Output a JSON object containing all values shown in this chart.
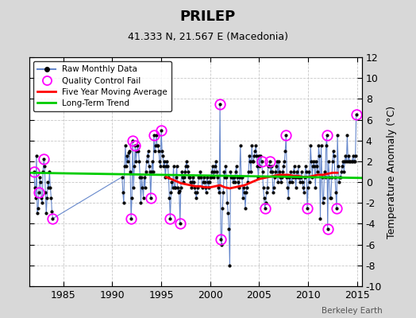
{
  "title": "PRILEP",
  "subtitle": "41.333 N, 21.567 E (Macedonia)",
  "ylabel": "Temperature Anomaly (°C)",
  "attribution": "Berkeley Earth",
  "xlim": [
    1981.5,
    2015.5
  ],
  "ylim": [
    -10,
    12
  ],
  "yticks": [
    -10,
    -8,
    -6,
    -4,
    -2,
    0,
    2,
    4,
    6,
    8,
    10,
    12
  ],
  "xticks": [
    1985,
    1990,
    1995,
    2000,
    2005,
    2010,
    2015
  ],
  "bg_color": "#d8d8d8",
  "plot_bg_color": "#ffffff",
  "grid_color": "#c8c8c8",
  "raw_line_color": "#6688cc",
  "raw_dot_color": "#000000",
  "qc_color": "#ff00ff",
  "ma_color": "#ff0000",
  "trend_color": "#00cc00",
  "raw_data": [
    [
      1982.0,
      1.0
    ],
    [
      1982.083,
      -0.5
    ],
    [
      1982.167,
      -1.5
    ],
    [
      1982.25,
      2.5
    ],
    [
      1982.333,
      -3.0
    ],
    [
      1982.417,
      -2.5
    ],
    [
      1982.5,
      -1.0
    ],
    [
      1982.583,
      0.5
    ],
    [
      1982.667,
      0.0
    ],
    [
      1982.75,
      -1.5
    ],
    [
      1982.833,
      -2.0
    ],
    [
      1982.917,
      1.0
    ],
    [
      1983.0,
      2.2
    ],
    [
      1983.083,
      1.5
    ],
    [
      1983.167,
      -1.0
    ],
    [
      1983.25,
      -3.0
    ],
    [
      1983.333,
      -1.5
    ],
    [
      1983.417,
      0.0
    ],
    [
      1983.5,
      -0.5
    ],
    [
      1983.583,
      1.0
    ],
    [
      1983.667,
      -0.5
    ],
    [
      1983.75,
      -1.5
    ],
    [
      1983.833,
      -2.8
    ],
    [
      1983.917,
      -3.5
    ],
    [
      1991.0,
      0.5
    ],
    [
      1991.083,
      -1.0
    ],
    [
      1991.167,
      -2.0
    ],
    [
      1991.25,
      1.5
    ],
    [
      1991.333,
      3.5
    ],
    [
      1991.417,
      1.5
    ],
    [
      1991.5,
      2.5
    ],
    [
      1991.583,
      2.0
    ],
    [
      1991.667,
      2.8
    ],
    [
      1991.75,
      3.0
    ],
    [
      1991.833,
      1.0
    ],
    [
      1991.917,
      -3.5
    ],
    [
      1992.0,
      -1.5
    ],
    [
      1992.083,
      4.0
    ],
    [
      1992.167,
      -0.5
    ],
    [
      1992.25,
      1.5
    ],
    [
      1992.333,
      3.5
    ],
    [
      1992.417,
      2.0
    ],
    [
      1992.5,
      3.0
    ],
    [
      1992.583,
      3.5
    ],
    [
      1992.667,
      3.0
    ],
    [
      1992.75,
      2.0
    ],
    [
      1992.833,
      0.5
    ],
    [
      1992.917,
      -2.0
    ],
    [
      1993.0,
      0.5
    ],
    [
      1993.083,
      -0.5
    ],
    [
      1993.167,
      -1.5
    ],
    [
      1993.25,
      0.5
    ],
    [
      1993.333,
      -0.5
    ],
    [
      1993.417,
      1.0
    ],
    [
      1993.5,
      2.0
    ],
    [
      1993.583,
      2.5
    ],
    [
      1993.667,
      3.0
    ],
    [
      1993.75,
      1.5
    ],
    [
      1993.833,
      1.0
    ],
    [
      1993.917,
      -1.5
    ],
    [
      1994.0,
      1.0
    ],
    [
      1994.083,
      2.0
    ],
    [
      1994.167,
      1.0
    ],
    [
      1994.25,
      4.5
    ],
    [
      1994.333,
      3.0
    ],
    [
      1994.417,
      3.5
    ],
    [
      1994.5,
      4.5
    ],
    [
      1994.583,
      3.5
    ],
    [
      1994.667,
      3.5
    ],
    [
      1994.75,
      3.0
    ],
    [
      1994.833,
      2.0
    ],
    [
      1994.917,
      1.5
    ],
    [
      1995.0,
      5.0
    ],
    [
      1995.083,
      3.0
    ],
    [
      1995.167,
      2.5
    ],
    [
      1995.25,
      1.5
    ],
    [
      1995.333,
      2.0
    ],
    [
      1995.417,
      0.5
    ],
    [
      1995.5,
      1.5
    ],
    [
      1995.583,
      2.0
    ],
    [
      1995.667,
      1.5
    ],
    [
      1995.75,
      0.5
    ],
    [
      1995.833,
      -1.5
    ],
    [
      1995.917,
      -3.5
    ],
    [
      1996.0,
      -1.0
    ],
    [
      1996.083,
      0.0
    ],
    [
      1996.167,
      -0.5
    ],
    [
      1996.25,
      1.5
    ],
    [
      1996.333,
      -0.5
    ],
    [
      1996.417,
      -0.5
    ],
    [
      1996.5,
      0.5
    ],
    [
      1996.583,
      1.5
    ],
    [
      1996.667,
      -0.5
    ],
    [
      1996.75,
      -1.0
    ],
    [
      1996.833,
      -0.8
    ],
    [
      1996.917,
      -4.0
    ],
    [
      1997.0,
      -0.5
    ],
    [
      1997.083,
      1.0
    ],
    [
      1997.167,
      0.5
    ],
    [
      1997.25,
      0.0
    ],
    [
      1997.333,
      0.5
    ],
    [
      1997.417,
      1.0
    ],
    [
      1997.5,
      1.5
    ],
    [
      1997.583,
      2.0
    ],
    [
      1997.667,
      1.5
    ],
    [
      1997.75,
      1.0
    ],
    [
      1997.833,
      0.5
    ],
    [
      1997.917,
      0.5
    ],
    [
      1998.0,
      0.0
    ],
    [
      1998.083,
      -0.5
    ],
    [
      1998.167,
      0.0
    ],
    [
      1998.25,
      0.5
    ],
    [
      1998.333,
      0.0
    ],
    [
      1998.417,
      -0.5
    ],
    [
      1998.5,
      -1.0
    ],
    [
      1998.583,
      -1.5
    ],
    [
      1998.667,
      -1.0
    ],
    [
      1998.75,
      -0.5
    ],
    [
      1998.833,
      0.5
    ],
    [
      1998.917,
      0.5
    ],
    [
      1999.0,
      1.0
    ],
    [
      1999.083,
      0.5
    ],
    [
      1999.167,
      -0.5
    ],
    [
      1999.25,
      0.0
    ],
    [
      1999.333,
      0.5
    ],
    [
      1999.417,
      0.0
    ],
    [
      1999.5,
      -0.5
    ],
    [
      1999.583,
      -1.0
    ],
    [
      1999.667,
      0.5
    ],
    [
      1999.75,
      0.0
    ],
    [
      1999.833,
      -0.5
    ],
    [
      1999.917,
      0.0
    ],
    [
      2000.0,
      0.5
    ],
    [
      2000.083,
      0.5
    ],
    [
      2000.167,
      1.0
    ],
    [
      2000.25,
      1.5
    ],
    [
      2000.333,
      0.5
    ],
    [
      2000.417,
      1.0
    ],
    [
      2000.5,
      1.5
    ],
    [
      2000.583,
      2.0
    ],
    [
      2000.667,
      1.0
    ],
    [
      2000.75,
      0.5
    ],
    [
      2000.833,
      -0.5
    ],
    [
      2000.917,
      -1.0
    ],
    [
      2001.0,
      7.5
    ],
    [
      2001.083,
      -5.5
    ],
    [
      2001.167,
      -6.0
    ],
    [
      2001.25,
      -2.5
    ],
    [
      2001.333,
      -1.0
    ],
    [
      2001.417,
      1.0
    ],
    [
      2001.5,
      0.5
    ],
    [
      2001.583,
      1.5
    ],
    [
      2001.667,
      0.5
    ],
    [
      2001.75,
      -2.0
    ],
    [
      2001.833,
      -3.0
    ],
    [
      2001.917,
      -4.5
    ],
    [
      2002.0,
      -8.0
    ],
    [
      2002.083,
      1.0
    ],
    [
      2002.167,
      0.5
    ],
    [
      2002.25,
      0.5
    ],
    [
      2002.333,
      0.0
    ],
    [
      2002.417,
      0.5
    ],
    [
      2002.5,
      0.0
    ],
    [
      2002.583,
      1.0
    ],
    [
      2002.667,
      1.5
    ],
    [
      2002.75,
      0.5
    ],
    [
      2002.833,
      0.0
    ],
    [
      2002.917,
      -0.5
    ],
    [
      2003.0,
      0.5
    ],
    [
      2003.083,
      3.5
    ],
    [
      2003.167,
      0.5
    ],
    [
      2003.25,
      0.5
    ],
    [
      2003.333,
      -1.5
    ],
    [
      2003.417,
      -0.5
    ],
    [
      2003.5,
      -1.0
    ],
    [
      2003.583,
      -2.5
    ],
    [
      2003.667,
      -1.0
    ],
    [
      2003.75,
      -0.5
    ],
    [
      2003.833,
      0.0
    ],
    [
      2003.917,
      1.0
    ],
    [
      2004.0,
      2.5
    ],
    [
      2004.083,
      2.0
    ],
    [
      2004.167,
      1.0
    ],
    [
      2004.25,
      3.5
    ],
    [
      2004.333,
      2.0
    ],
    [
      2004.417,
      2.0
    ],
    [
      2004.5,
      2.5
    ],
    [
      2004.583,
      3.0
    ],
    [
      2004.667,
      3.5
    ],
    [
      2004.75,
      2.5
    ],
    [
      2004.833,
      1.5
    ],
    [
      2004.917,
      0.5
    ],
    [
      2005.0,
      2.5
    ],
    [
      2005.083,
      1.5
    ],
    [
      2005.167,
      2.5
    ],
    [
      2005.25,
      2.0
    ],
    [
      2005.333,
      1.0
    ],
    [
      2005.417,
      -0.5
    ],
    [
      2005.5,
      -1.5
    ],
    [
      2005.583,
      -2.5
    ],
    [
      2005.667,
      -2.0
    ],
    [
      2005.75,
      -1.0
    ],
    [
      2005.833,
      -0.5
    ],
    [
      2005.917,
      1.5
    ],
    [
      2006.0,
      1.5
    ],
    [
      2006.083,
      2.0
    ],
    [
      2006.167,
      1.0
    ],
    [
      2006.25,
      1.5
    ],
    [
      2006.333,
      1.0
    ],
    [
      2006.417,
      -1.0
    ],
    [
      2006.5,
      -0.5
    ],
    [
      2006.583,
      0.5
    ],
    [
      2006.667,
      1.0
    ],
    [
      2006.75,
      1.5
    ],
    [
      2006.833,
      2.0
    ],
    [
      2006.917,
      0.0
    ],
    [
      2007.0,
      2.0
    ],
    [
      2007.083,
      1.0
    ],
    [
      2007.167,
      0.5
    ],
    [
      2007.25,
      0.0
    ],
    [
      2007.333,
      0.5
    ],
    [
      2007.417,
      1.0
    ],
    [
      2007.5,
      1.5
    ],
    [
      2007.583,
      2.0
    ],
    [
      2007.667,
      3.0
    ],
    [
      2007.75,
      4.5
    ],
    [
      2007.833,
      0.5
    ],
    [
      2007.917,
      -0.5
    ],
    [
      2008.0,
      -1.5
    ],
    [
      2008.083,
      0.5
    ],
    [
      2008.167,
      0.0
    ],
    [
      2008.25,
      1.0
    ],
    [
      2008.333,
      0.0
    ],
    [
      2008.417,
      0.5
    ],
    [
      2008.5,
      1.0
    ],
    [
      2008.583,
      1.5
    ],
    [
      2008.667,
      0.5
    ],
    [
      2008.75,
      -0.5
    ],
    [
      2008.833,
      1.0
    ],
    [
      2008.917,
      0.5
    ],
    [
      2009.0,
      1.5
    ],
    [
      2009.083,
      0.5
    ],
    [
      2009.167,
      0.0
    ],
    [
      2009.25,
      0.5
    ],
    [
      2009.333,
      1.0
    ],
    [
      2009.417,
      0.0
    ],
    [
      2009.5,
      -0.5
    ],
    [
      2009.583,
      -1.0
    ],
    [
      2009.667,
      0.5
    ],
    [
      2009.75,
      1.5
    ],
    [
      2009.833,
      1.0
    ],
    [
      2009.917,
      -2.5
    ],
    [
      2010.0,
      -0.5
    ],
    [
      2010.083,
      1.0
    ],
    [
      2010.167,
      0.0
    ],
    [
      2010.25,
      3.5
    ],
    [
      2010.333,
      2.0
    ],
    [
      2010.417,
      0.5
    ],
    [
      2010.5,
      1.5
    ],
    [
      2010.583,
      2.0
    ],
    [
      2010.667,
      1.5
    ],
    [
      2010.75,
      -0.5
    ],
    [
      2010.833,
      2.0
    ],
    [
      2010.917,
      1.5
    ],
    [
      2011.0,
      1.0
    ],
    [
      2011.083,
      3.5
    ],
    [
      2011.167,
      2.5
    ],
    [
      2011.25,
      -3.5
    ],
    [
      2011.333,
      3.5
    ],
    [
      2011.417,
      0.5
    ],
    [
      2011.5,
      -2.0
    ],
    [
      2011.583,
      -1.5
    ],
    [
      2011.667,
      1.0
    ],
    [
      2011.75,
      0.5
    ],
    [
      2011.833,
      3.5
    ],
    [
      2011.917,
      4.5
    ],
    [
      2012.0,
      -4.5
    ],
    [
      2012.083,
      2.0
    ],
    [
      2012.167,
      0.5
    ],
    [
      2012.25,
      -1.5
    ],
    [
      2012.333,
      -1.5
    ],
    [
      2012.417,
      0.5
    ],
    [
      2012.5,
      2.0
    ],
    [
      2012.583,
      3.0
    ],
    [
      2012.667,
      2.5
    ],
    [
      2012.75,
      0.5
    ],
    [
      2012.833,
      -1.0
    ],
    [
      2012.917,
      -2.5
    ],
    [
      2013.0,
      4.5
    ],
    [
      2013.083,
      1.5
    ],
    [
      2013.167,
      0.0
    ],
    [
      2013.25,
      0.5
    ],
    [
      2013.333,
      0.5
    ],
    [
      2013.417,
      1.0
    ],
    [
      2013.5,
      1.5
    ],
    [
      2013.583,
      2.0
    ],
    [
      2013.667,
      1.0
    ],
    [
      2013.75,
      2.0
    ],
    [
      2013.833,
      2.5
    ],
    [
      2013.917,
      2.0
    ],
    [
      2014.0,
      4.5
    ],
    [
      2014.083,
      2.0
    ],
    [
      2014.167,
      2.5
    ],
    [
      2014.25,
      2.0
    ],
    [
      2014.333,
      2.0
    ],
    [
      2014.417,
      2.0
    ],
    [
      2014.5,
      2.0
    ],
    [
      2014.583,
      2.5
    ],
    [
      2014.667,
      2.0
    ],
    [
      2014.75,
      2.0
    ],
    [
      2014.833,
      2.5
    ],
    [
      2014.917,
      6.5
    ]
  ],
  "qc_fail": [
    [
      1982.0,
      1.0
    ],
    [
      1982.5,
      -1.0
    ],
    [
      1983.0,
      2.2
    ],
    [
      1983.917,
      -3.5
    ],
    [
      1991.917,
      -3.5
    ],
    [
      1992.083,
      4.0
    ],
    [
      1992.333,
      3.5
    ],
    [
      1993.917,
      -1.5
    ],
    [
      1994.25,
      4.5
    ],
    [
      1995.0,
      5.0
    ],
    [
      1995.917,
      -3.5
    ],
    [
      1996.917,
      -4.0
    ],
    [
      2001.0,
      7.5
    ],
    [
      2001.083,
      -5.5
    ],
    [
      2005.25,
      2.0
    ],
    [
      2005.583,
      -2.5
    ],
    [
      2006.083,
      2.0
    ],
    [
      2007.75,
      4.5
    ],
    [
      2009.917,
      -2.5
    ],
    [
      2011.917,
      4.5
    ],
    [
      2012.0,
      -4.5
    ],
    [
      2012.917,
      -2.5
    ],
    [
      2014.917,
      6.5
    ]
  ],
  "moving_avg": [
    [
      1995.5,
      0.5
    ],
    [
      1996.0,
      0.3
    ],
    [
      1996.5,
      0.1
    ],
    [
      1997.0,
      -0.1
    ],
    [
      1997.5,
      -0.2
    ],
    [
      1998.0,
      -0.3
    ],
    [
      1998.5,
      -0.4
    ],
    [
      1999.0,
      -0.4
    ],
    [
      1999.5,
      -0.5
    ],
    [
      2000.0,
      -0.5
    ],
    [
      2000.5,
      -0.4
    ],
    [
      2001.0,
      -0.3
    ],
    [
      2001.5,
      -0.5
    ],
    [
      2002.0,
      -0.6
    ],
    [
      2002.5,
      -0.5
    ],
    [
      2003.0,
      -0.4
    ],
    [
      2003.5,
      -0.3
    ],
    [
      2004.0,
      -0.1
    ],
    [
      2004.5,
      0.1
    ],
    [
      2005.0,
      0.3
    ],
    [
      2005.5,
      0.4
    ],
    [
      2006.0,
      0.5
    ],
    [
      2006.5,
      0.6
    ],
    [
      2007.0,
      0.7
    ],
    [
      2007.5,
      0.7
    ],
    [
      2008.0,
      0.7
    ],
    [
      2008.5,
      0.6
    ],
    [
      2009.0,
      0.6
    ],
    [
      2009.5,
      0.5
    ],
    [
      2010.0,
      0.5
    ],
    [
      2010.5,
      0.6
    ],
    [
      2011.0,
      0.7
    ],
    [
      2011.5,
      0.7
    ],
    [
      2012.0,
      0.8
    ],
    [
      2012.5,
      0.9
    ],
    [
      2013.0,
      0.9
    ]
  ],
  "trend_x": [
    1981.5,
    2015.5
  ],
  "trend_y": [
    0.9,
    0.4
  ]
}
